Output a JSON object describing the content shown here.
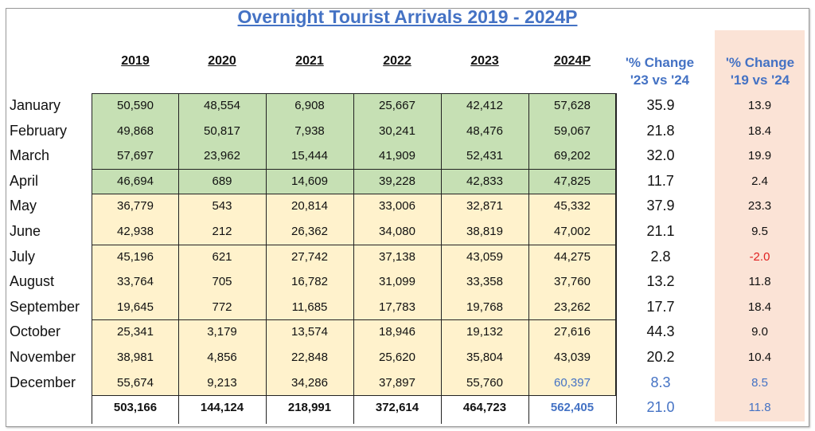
{
  "title": "Overnight Tourist Arrivals 2019 - 2024P",
  "columns": [
    "2019",
    "2020",
    "2021",
    "2022",
    "2023",
    "2024P"
  ],
  "change_headers": [
    {
      "line1": "'% Change",
      "line2": "'23 vs '24"
    },
    {
      "line1": "'% Change",
      "line2": "'19 vs '24"
    }
  ],
  "colors": {
    "green": "#c6e0b4",
    "yellow": "#fff2cc",
    "peach": "#fbe3d6",
    "blue": "#4472c4",
    "red": "#e02020"
  },
  "rows": [
    {
      "month": "January",
      "values": [
        "50,590",
        "48,554",
        "6,908",
        "25,667",
        "42,412",
        "57,628"
      ],
      "chg23": "35.9",
      "chg19": "13.9"
    },
    {
      "month": "February",
      "values": [
        "49,868",
        "50,817",
        "7,938",
        "30,241",
        "48,476",
        "59,067"
      ],
      "chg23": "21.8",
      "chg19": "18.4"
    },
    {
      "month": "March",
      "values": [
        "57,697",
        "23,962",
        "15,444",
        "41,909",
        "52,431",
        "69,202"
      ],
      "chg23": "32.0",
      "chg19": "19.9"
    },
    {
      "month": "April",
      "values": [
        "46,694",
        "689",
        "14,609",
        "39,228",
        "42,833",
        "47,825"
      ],
      "chg23": "11.7",
      "chg19": "2.4"
    },
    {
      "month": "May",
      "values": [
        "36,779",
        "543",
        "20,814",
        "33,006",
        "32,871",
        "45,332"
      ],
      "chg23": "37.9",
      "chg19": "23.3"
    },
    {
      "month": "June",
      "values": [
        "42,938",
        "212",
        "26,362",
        "34,080",
        "38,819",
        "47,002"
      ],
      "chg23": "21.1",
      "chg19": "9.5"
    },
    {
      "month": "July",
      "values": [
        "45,196",
        "621",
        "27,742",
        "37,138",
        "43,059",
        "44,275"
      ],
      "chg23": "2.8",
      "chg19": "-2.0"
    },
    {
      "month": "August",
      "values": [
        "33,764",
        "705",
        "16,782",
        "31,099",
        "33,358",
        "37,760"
      ],
      "chg23": "13.2",
      "chg19": "11.8"
    },
    {
      "month": "September",
      "values": [
        "19,645",
        "772",
        "11,685",
        "17,783",
        "19,768",
        "23,262"
      ],
      "chg23": "17.7",
      "chg19": "18.4"
    },
    {
      "month": "October",
      "values": [
        "25,341",
        "3,179",
        "13,574",
        "18,946",
        "19,132",
        "27,616"
      ],
      "chg23": "44.3",
      "chg19": "9.0"
    },
    {
      "month": "November",
      "values": [
        "38,981",
        "4,856",
        "22,848",
        "25,620",
        "35,804",
        "43,039"
      ],
      "chg23": "20.2",
      "chg19": "10.4"
    },
    {
      "month": "December",
      "values": [
        "55,674",
        "9,213",
        "34,286",
        "37,897",
        "55,760",
        "60,397"
      ],
      "chg23": "8.3",
      "chg19": "8.5"
    }
  ],
  "totals": {
    "values": [
      "503,166",
      "144,124",
      "218,991",
      "372,614",
      "464,723",
      "562,405"
    ],
    "chg23": "21.0",
    "chg19": "11.8"
  }
}
